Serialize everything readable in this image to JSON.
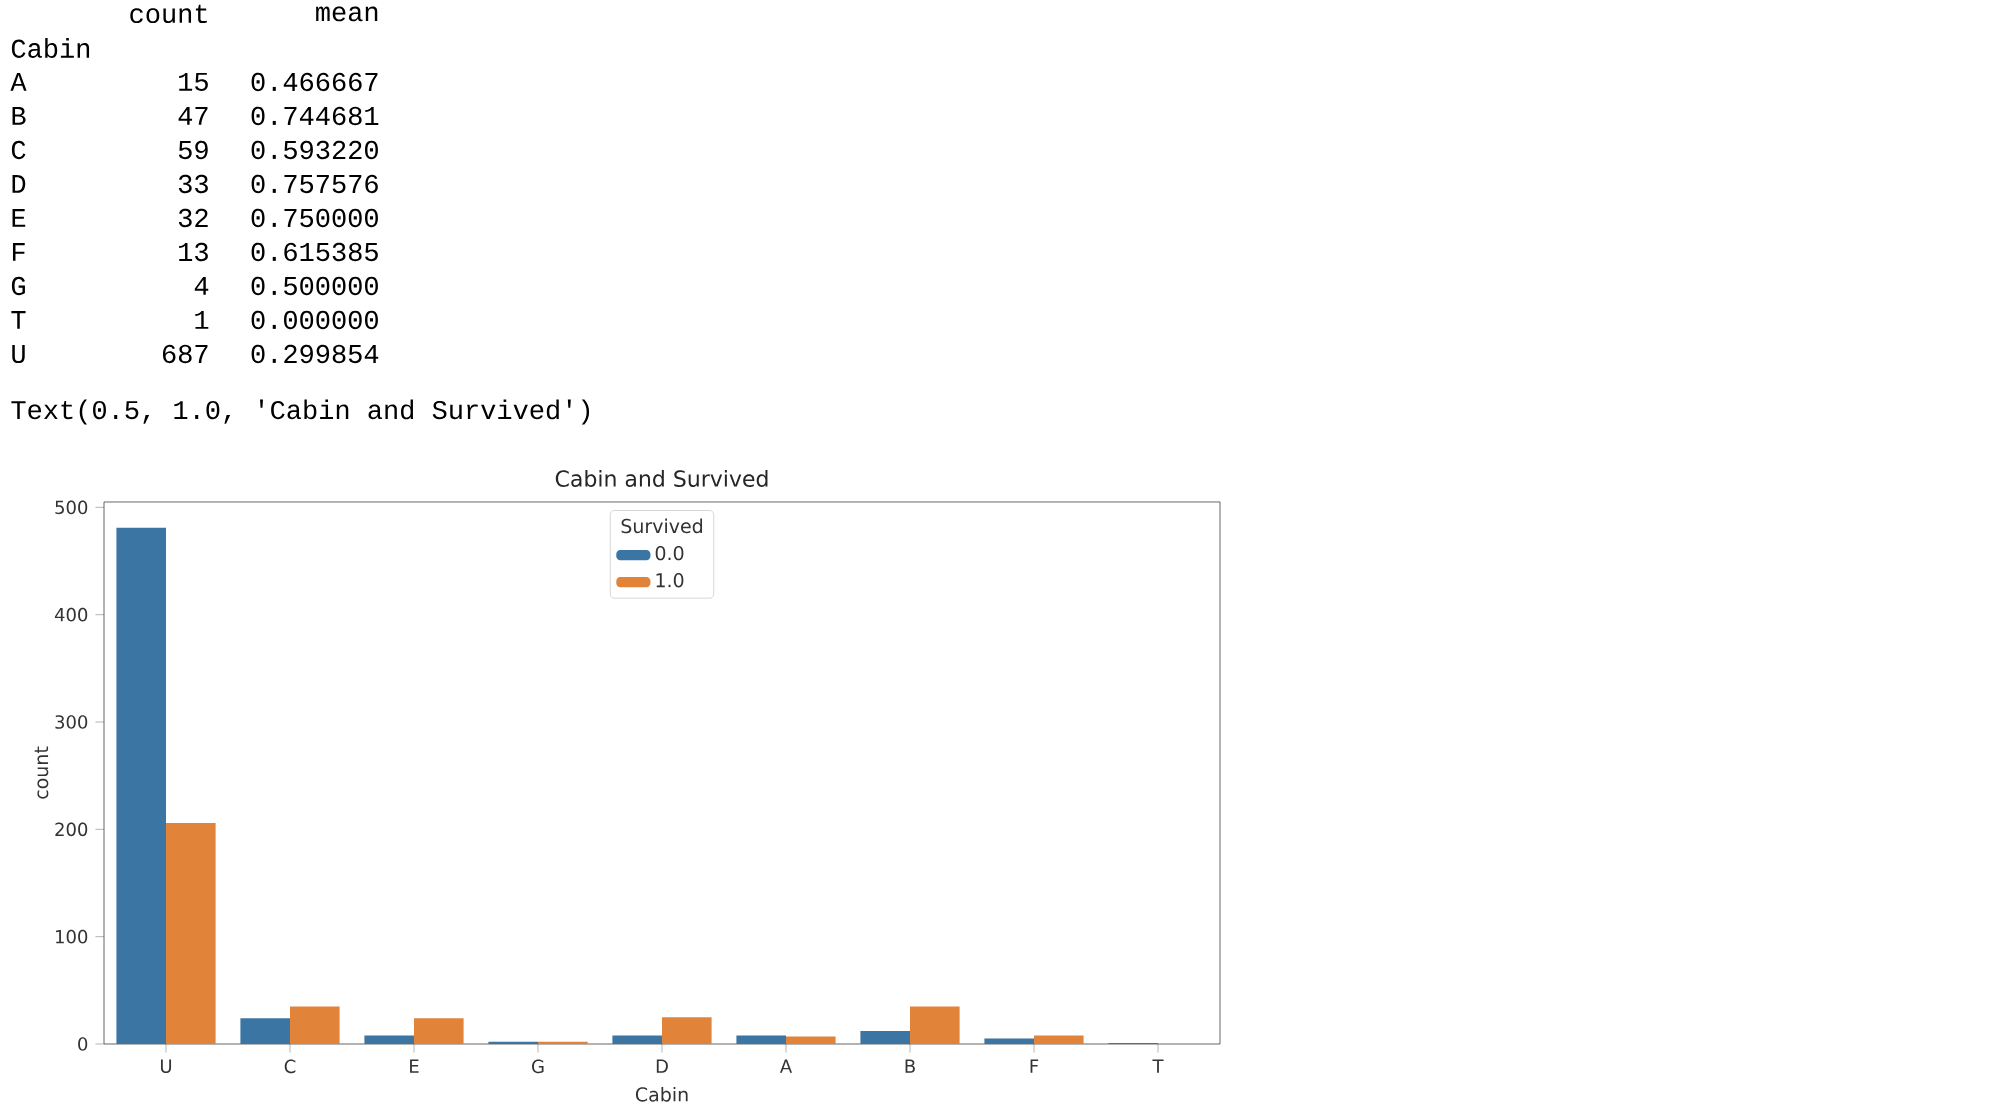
{
  "chart_data": {
    "type": "bar",
    "title": "Cabin and Survived",
    "xlabel": "Cabin",
    "ylabel": "count",
    "legend_title": "Survived",
    "categories": [
      "U",
      "C",
      "E",
      "G",
      "D",
      "A",
      "B",
      "F",
      "T"
    ],
    "series": [
      {
        "name": "0.0",
        "color": "#3a75a3",
        "values": [
          481,
          24,
          8,
          2,
          8,
          8,
          12,
          5,
          1
        ]
      },
      {
        "name": "1.0",
        "color": "#e1843a",
        "values": [
          206,
          35,
          24,
          2,
          25,
          7,
          35,
          8,
          0
        ]
      }
    ],
    "ylim": [
      0,
      505
    ],
    "yticks": [
      0,
      100,
      200,
      300,
      400,
      500
    ],
    "grid": false,
    "legend": "top",
    "annotations": [
      "count",
      "mean",
      "Cabin",
      "A",
      "15",
      "0.466667",
      "B",
      "47",
      "0.744681",
      "C",
      "59",
      "0.593220",
      "D",
      "33",
      "0.757576",
      "E",
      "32",
      "0.750000",
      "F",
      "13",
      "0.615385",
      "G",
      "4",
      "0.500000",
      "T",
      "1",
      "0.000000",
      "U",
      "687",
      "0.299854",
      "Text(0.5, 1.0, 'Cabin and Survived')"
    ]
  }
}
